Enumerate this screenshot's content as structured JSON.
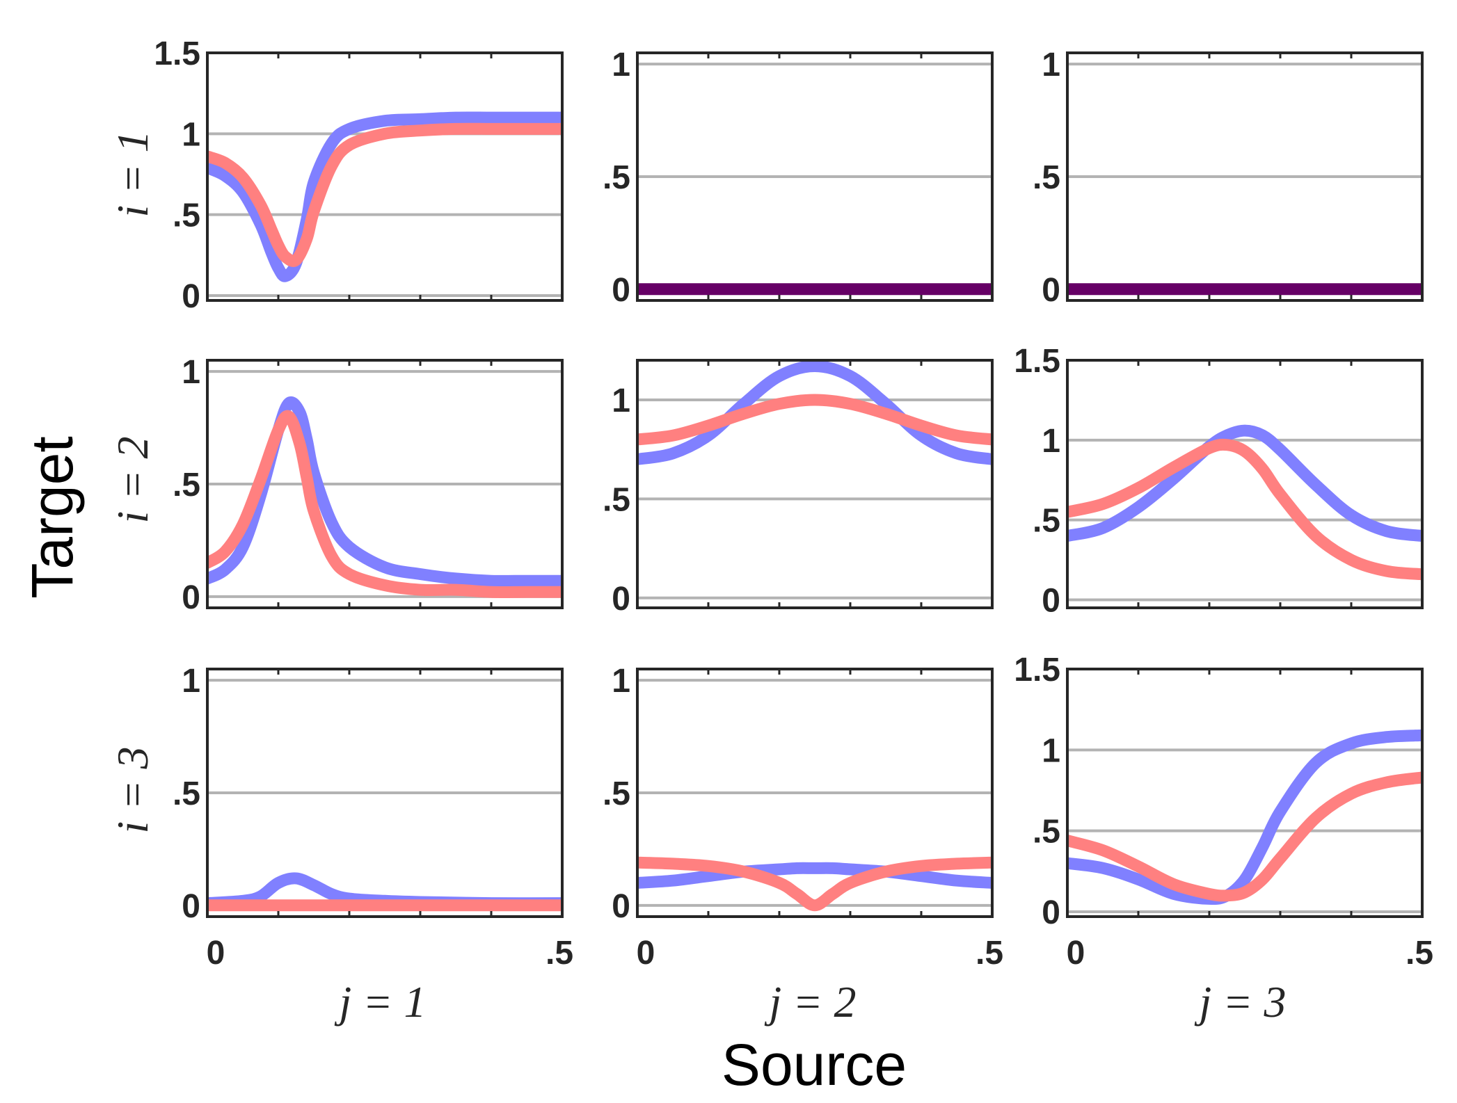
{
  "figure": {
    "xlabel": "Source",
    "ylabel": "Target",
    "col_labels": [
      "j = 1",
      "j = 2",
      "j = 3"
    ],
    "row_labels": [
      "i = 1",
      "i = 2",
      "i = 3"
    ],
    "x_tick_labels": [
      "0",
      ".5"
    ],
    "colors": {
      "series_a": "#8080ff",
      "series_b": "#ff8080",
      "overlap": "#660066",
      "grid": "#b3b3b3",
      "axes": "#262626"
    }
  },
  "chart_data": [
    {
      "type": "line",
      "row": 1,
      "col": 1,
      "xlim": [
        0,
        0.5
      ],
      "ylim": [
        -0.03,
        1.5
      ],
      "yticks": [
        0,
        0.5,
        1,
        1.5
      ],
      "ytick_labels": [
        "0",
        ".5",
        "1",
        "1.5"
      ],
      "x": [
        0,
        0.025,
        0.05,
        0.075,
        0.09,
        0.1,
        0.11,
        0.125,
        0.14,
        0.15,
        0.175,
        0.2,
        0.25,
        0.3,
        0.35,
        0.4,
        0.45,
        0.5
      ],
      "series": [
        {
          "name": "series_a",
          "values": [
            0.79,
            0.74,
            0.64,
            0.44,
            0.27,
            0.17,
            0.12,
            0.2,
            0.47,
            0.7,
            0.94,
            1.03,
            1.08,
            1.09,
            1.1,
            1.1,
            1.1,
            1.1
          ]
        },
        {
          "name": "series_b",
          "values": [
            0.86,
            0.82,
            0.73,
            0.56,
            0.41,
            0.31,
            0.24,
            0.22,
            0.35,
            0.52,
            0.8,
            0.93,
            1.0,
            1.02,
            1.03,
            1.03,
            1.03,
            1.03
          ]
        }
      ]
    },
    {
      "type": "line",
      "row": 1,
      "col": 2,
      "xlim": [
        0,
        0.5
      ],
      "ylim": [
        -0.05,
        1.05
      ],
      "yticks": [
        0,
        0.5,
        1
      ],
      "ytick_labels": [
        "0",
        ".5",
        "1"
      ],
      "x": [
        0,
        0.5
      ],
      "series": [
        {
          "name": "overlap",
          "values": [
            0,
            0
          ]
        }
      ]
    },
    {
      "type": "line",
      "row": 1,
      "col": 3,
      "xlim": [
        0,
        0.5
      ],
      "ylim": [
        -0.05,
        1.05
      ],
      "yticks": [
        0,
        0.5,
        1
      ],
      "ytick_labels": [
        "0",
        ".5",
        "1"
      ],
      "x": [
        0,
        0.5
      ],
      "series": [
        {
          "name": "overlap",
          "values": [
            0,
            0
          ]
        }
      ]
    },
    {
      "type": "line",
      "row": 2,
      "col": 1,
      "xlim": [
        0,
        0.5
      ],
      "ylim": [
        -0.05,
        1.05
      ],
      "yticks": [
        0,
        0.5,
        1
      ],
      "ytick_labels": [
        "0",
        ".5",
        "1"
      ],
      "x": [
        0,
        0.025,
        0.05,
        0.075,
        0.1,
        0.115,
        0.13,
        0.14,
        0.15,
        0.175,
        0.2,
        0.25,
        0.3,
        0.35,
        0.4,
        0.45,
        0.5
      ],
      "series": [
        {
          "name": "series_a",
          "values": [
            0.08,
            0.12,
            0.22,
            0.45,
            0.74,
            0.86,
            0.82,
            0.7,
            0.55,
            0.33,
            0.22,
            0.13,
            0.1,
            0.08,
            0.07,
            0.07,
            0.07
          ]
        },
        {
          "name": "series_b",
          "values": [
            0.15,
            0.2,
            0.32,
            0.52,
            0.74,
            0.8,
            0.68,
            0.53,
            0.38,
            0.18,
            0.1,
            0.05,
            0.03,
            0.03,
            0.02,
            0.02,
            0.02
          ]
        }
      ]
    },
    {
      "type": "line",
      "row": 2,
      "col": 2,
      "xlim": [
        0,
        0.5
      ],
      "ylim": [
        -0.05,
        1.2
      ],
      "yticks": [
        0,
        0.5,
        1
      ],
      "ytick_labels": [
        "0",
        ".5",
        "1"
      ],
      "x": [
        0,
        0.05,
        0.1,
        0.15,
        0.2,
        0.25,
        0.3,
        0.35,
        0.4,
        0.45,
        0.5
      ],
      "series": [
        {
          "name": "series_a",
          "values": [
            0.7,
            0.73,
            0.82,
            0.98,
            1.12,
            1.17,
            1.12,
            0.98,
            0.82,
            0.73,
            0.7
          ]
        },
        {
          "name": "series_b",
          "values": [
            0.8,
            0.82,
            0.87,
            0.93,
            0.98,
            1.0,
            0.98,
            0.93,
            0.87,
            0.82,
            0.8
          ]
        }
      ]
    },
    {
      "type": "line",
      "row": 2,
      "col": 3,
      "xlim": [
        0,
        0.5
      ],
      "ylim": [
        -0.05,
        1.5
      ],
      "yticks": [
        0,
        0.5,
        1,
        1.5
      ],
      "ytick_labels": [
        "0",
        ".5",
        "1",
        "1.5"
      ],
      "x": [
        0,
        0.05,
        0.1,
        0.15,
        0.2,
        0.225,
        0.25,
        0.275,
        0.3,
        0.35,
        0.4,
        0.45,
        0.5
      ],
      "series": [
        {
          "name": "series_a",
          "values": [
            0.4,
            0.45,
            0.58,
            0.76,
            0.96,
            1.03,
            1.06,
            1.03,
            0.94,
            0.72,
            0.53,
            0.43,
            0.4
          ]
        },
        {
          "name": "series_b",
          "values": [
            0.55,
            0.6,
            0.7,
            0.83,
            0.95,
            0.97,
            0.93,
            0.82,
            0.66,
            0.4,
            0.25,
            0.18,
            0.16
          ]
        }
      ]
    },
    {
      "type": "line",
      "row": 3,
      "col": 1,
      "xlim": [
        0,
        0.5
      ],
      "ylim": [
        -0.05,
        1.05
      ],
      "yticks": [
        0,
        0.5,
        1
      ],
      "ytick_labels": [
        "0",
        ".5",
        "1"
      ],
      "x": [
        0,
        0.05,
        0.075,
        0.1,
        0.125,
        0.15,
        0.175,
        0.2,
        0.25,
        0.3,
        0.4,
        0.5
      ],
      "series": [
        {
          "name": "series_a",
          "values": [
            0.01,
            0.02,
            0.04,
            0.1,
            0.12,
            0.09,
            0.05,
            0.03,
            0.02,
            0.015,
            0.01,
            0.01
          ]
        },
        {
          "name": "series_b",
          "values": [
            0.0,
            0.0,
            0.0,
            0.0,
            0.0,
            0.0,
            0.0,
            0.0,
            0.0,
            0.0,
            0.0,
            0.0
          ]
        }
      ]
    },
    {
      "type": "line",
      "row": 3,
      "col": 2,
      "xlim": [
        0,
        0.5
      ],
      "ylim": [
        -0.05,
        1.05
      ],
      "yticks": [
        0,
        0.5,
        1
      ],
      "ytick_labels": [
        "0",
        ".5",
        "1"
      ],
      "x": [
        0,
        0.05,
        0.1,
        0.15,
        0.2,
        0.225,
        0.25,
        0.275,
        0.3,
        0.35,
        0.4,
        0.45,
        0.5
      ],
      "series": [
        {
          "name": "series_a",
          "values": [
            0.1,
            0.11,
            0.13,
            0.15,
            0.16,
            0.165,
            0.165,
            0.165,
            0.16,
            0.15,
            0.13,
            0.11,
            0.1
          ]
        },
        {
          "name": "series_b",
          "values": [
            0.19,
            0.185,
            0.175,
            0.15,
            0.1,
            0.05,
            0.0,
            0.05,
            0.1,
            0.15,
            0.175,
            0.185,
            0.19
          ]
        }
      ]
    },
    {
      "type": "line",
      "row": 3,
      "col": 3,
      "xlim": [
        0,
        0.5
      ],
      "ylim": [
        -0.03,
        1.5
      ],
      "yticks": [
        0,
        0.5,
        1,
        1.5
      ],
      "ytick_labels": [
        "0",
        ".5",
        "1",
        "1.5"
      ],
      "x": [
        0,
        0.05,
        0.1,
        0.15,
        0.2,
        0.225,
        0.25,
        0.275,
        0.3,
        0.35,
        0.4,
        0.45,
        0.5
      ],
      "series": [
        {
          "name": "series_a",
          "values": [
            0.3,
            0.27,
            0.2,
            0.11,
            0.08,
            0.1,
            0.2,
            0.4,
            0.62,
            0.92,
            1.04,
            1.08,
            1.09
          ]
        },
        {
          "name": "series_b",
          "values": [
            0.44,
            0.38,
            0.28,
            0.17,
            0.11,
            0.1,
            0.12,
            0.2,
            0.33,
            0.58,
            0.73,
            0.8,
            0.83
          ]
        }
      ]
    }
  ]
}
